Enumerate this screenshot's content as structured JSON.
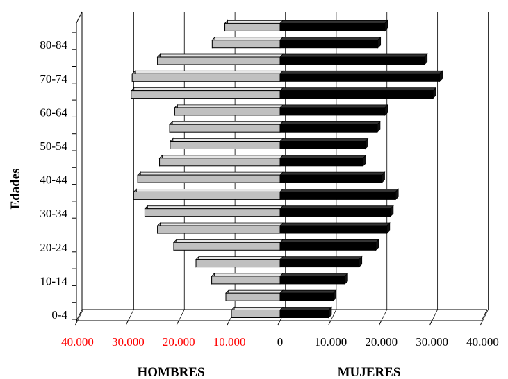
{
  "chart_data": {
    "type": "bar",
    "orientation": "horizontal",
    "layout": "population-pyramid",
    "ylabel": "Edades",
    "side_labels": {
      "left": "HOMBRES",
      "right": "MUJERES"
    },
    "y_tick_labels": [
      "0-4",
      "10-14",
      "20-24",
      "30-34",
      "40-44",
      "50-54",
      "60-64",
      "70-74",
      "80-84"
    ],
    "x_tick_labels_left": [
      "40.000",
      "30.000",
      "20.000",
      "10.000"
    ],
    "x_tick_labels_right": [
      "0",
      "10.000",
      "20.000",
      "30.000",
      "40.000"
    ],
    "xlim": [
      -40000,
      40000
    ],
    "grid": true,
    "series": [
      {
        "side": "left",
        "color": "#c0c0c0",
        "values": [
          9600,
          10700,
          13500,
          16600,
          21000,
          24200,
          26700,
          28900,
          28100,
          23800,
          21700,
          21800,
          20800,
          29400,
          29200,
          24200,
          13400,
          10900
        ]
      },
      {
        "side": "right",
        "color": "#000000",
        "values": [
          9600,
          10500,
          12800,
          15600,
          18900,
          21100,
          21800,
          22800,
          20100,
          16400,
          16800,
          19200,
          20700,
          30200,
          31500,
          28500,
          19300,
          20700
        ]
      }
    ],
    "colors": {
      "hombres": "#c0c0c0",
      "mujeres": "#000000",
      "ticks_left": "#ff0000",
      "ticks_right": "#000000"
    }
  }
}
